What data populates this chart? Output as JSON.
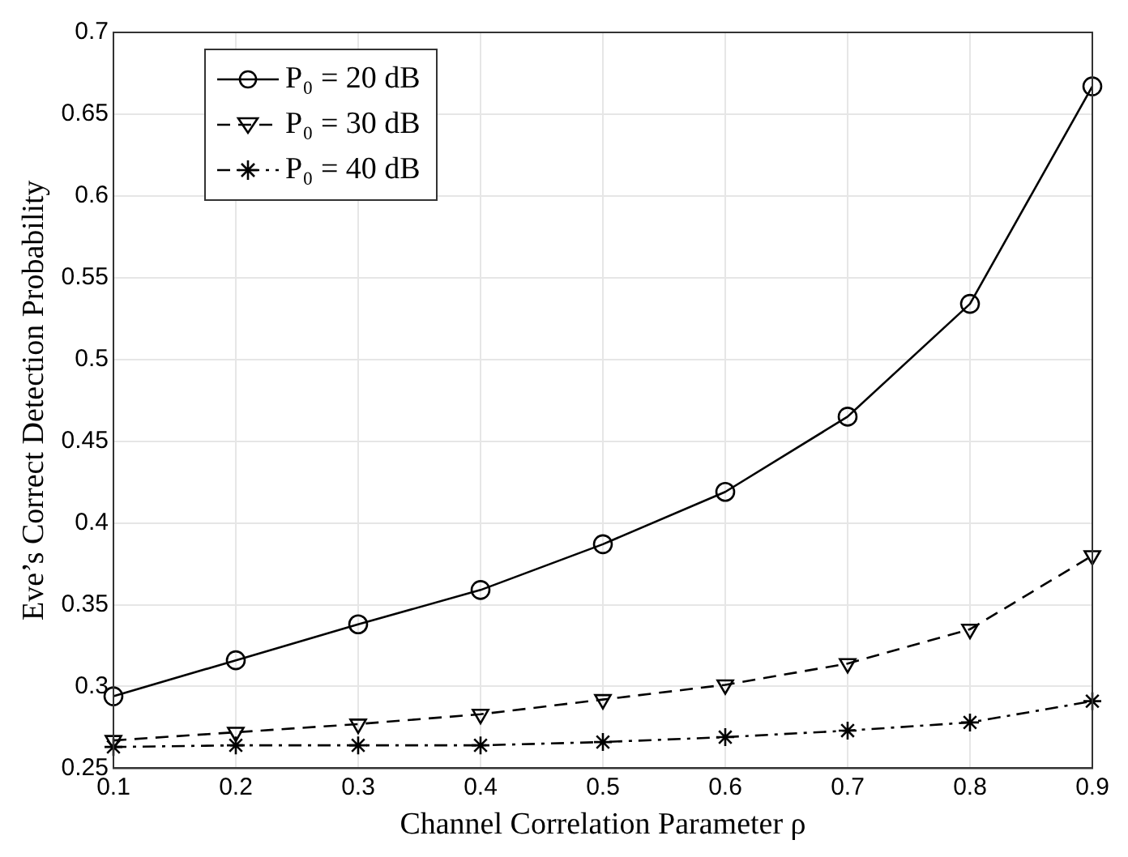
{
  "chart_data": {
    "type": "line",
    "xlabel": "Channel Correlation Parameter ρ",
    "ylabel": "Eve’s Correct Detection Probability",
    "x": [
      0.1,
      0.2,
      0.3,
      0.4,
      0.5,
      0.6,
      0.7,
      0.8,
      0.9
    ],
    "series": [
      {
        "name": "P₀ = 20 dB",
        "color": "#000000",
        "marker": "circle",
        "line_style": "solid",
        "values": [
          0.294,
          0.316,
          0.338,
          0.359,
          0.387,
          0.419,
          0.465,
          0.534,
          0.667
        ]
      },
      {
        "name": "P₀ = 30 dB",
        "color": "#000000",
        "marker": "triangle",
        "line_style": "dashed",
        "values": [
          0.267,
          0.272,
          0.277,
          0.283,
          0.292,
          0.301,
          0.314,
          0.335,
          0.38
        ]
      },
      {
        "name": "P₀ = 40 dB",
        "color": "#000000",
        "marker": "cross",
        "line_style": "dashdot",
        "values": [
          0.263,
          0.264,
          0.264,
          0.264,
          0.266,
          0.269,
          0.273,
          0.278,
          0.291
        ]
      }
    ],
    "xlim": [
      0.1,
      0.9
    ],
    "xticks": [
      0.1,
      0.2,
      0.3,
      0.4,
      0.5,
      0.6,
      0.7,
      0.8,
      0.9
    ],
    "ylim": [
      0.25,
      0.7
    ],
    "yticks": [
      0.25,
      0.3,
      0.35,
      0.4,
      0.45,
      0.5,
      0.55,
      0.6,
      0.65,
      0.7
    ],
    "grid": true,
    "legend": "top left"
  }
}
